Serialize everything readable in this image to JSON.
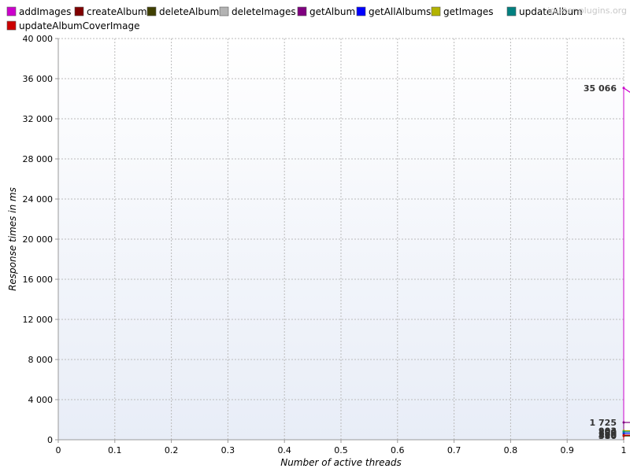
{
  "watermark": "jmeter-plugins.org",
  "colors": {
    "plot_bg_top": "#ffffff",
    "plot_bg_bottom": "#e8edf7",
    "grid": "#bbbbbb",
    "axis": "#999999"
  },
  "chart_data": {
    "type": "line",
    "title": "",
    "xlabel": "Number of active threads",
    "ylabel": "Response times in ms",
    "xlim": [
      0,
      1
    ],
    "ylim": [
      0,
      40000
    ],
    "x_ticks": [
      "0",
      "0.1",
      "0.2",
      "0.3",
      "0.4",
      "0.5",
      "0.6",
      "0.7",
      "0.8",
      "0.9",
      "1"
    ],
    "y_ticks": [
      "0",
      "4 000",
      "8 000",
      "12 000",
      "16 000",
      "20 000",
      "24 000",
      "28 000",
      "32 000",
      "36 000",
      "40 000"
    ],
    "grid": true,
    "legend_position": "top",
    "series": [
      {
        "name": "addImages",
        "color": "#cc00cc",
        "points": [
          [
            1,
            35066
          ]
        ],
        "label": "35 066"
      },
      {
        "name": "createAlbum",
        "color": "#800000",
        "points": [
          [
            1,
            420
          ]
        ],
        "label": "420"
      },
      {
        "name": "deleteAlbum",
        "color": "#3f3f00",
        "points": [
          [
            1,
            380
          ]
        ],
        "label": "380"
      },
      {
        "name": "deleteImages",
        "color": "#b3b3b3",
        "points": [
          [
            1,
            500
          ]
        ],
        "label": "500"
      },
      {
        "name": "getAlbum",
        "color": "#800080",
        "points": [
          [
            1,
            1725
          ]
        ],
        "label": "1 725"
      },
      {
        "name": "getAllAlbums",
        "color": "#0000ff",
        "points": [
          [
            1,
            650
          ]
        ],
        "label": "650"
      },
      {
        "name": "getImages",
        "color": "#b3b300",
        "points": [
          [
            1,
            903
          ]
        ],
        "label": "903"
      },
      {
        "name": "updateAlbum",
        "color": "#008080",
        "points": [
          [
            1,
            800
          ]
        ],
        "label": "800"
      },
      {
        "name": "updateAlbumCoverImage",
        "color": "#cc0000",
        "points": [
          [
            1,
            450
          ]
        ],
        "label": "450"
      }
    ]
  }
}
